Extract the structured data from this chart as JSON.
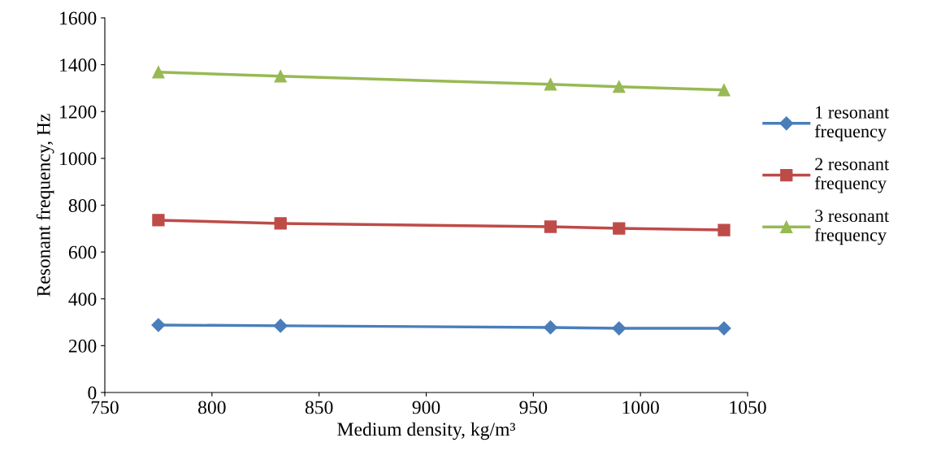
{
  "chart_data": {
    "type": "line",
    "xlabel": "Medium density, kg/m³",
    "ylabel": "Resonant frequency, Hz",
    "xlim": [
      750,
      1050
    ],
    "xticks": [
      750,
      800,
      850,
      900,
      950,
      1000,
      1050
    ],
    "ylim": [
      0,
      1600
    ],
    "yticks": [
      0,
      200,
      400,
      600,
      800,
      1000,
      1200,
      1400,
      1600
    ],
    "grid": false,
    "legend": "right",
    "x": [
      775,
      832,
      958,
      990,
      1039
    ],
    "series": [
      {
        "name": "1 resonant frequency",
        "color": "#4a7ebb",
        "marker": "diamond",
        "values": [
          288,
          285,
          278,
          274,
          274
        ]
      },
      {
        "name": "2 resonant frequency",
        "color": "#be4b48",
        "marker": "square",
        "values": [
          736,
          722,
          708,
          701,
          694
        ]
      },
      {
        "name": "3 resonant frequency",
        "color": "#98b954",
        "marker": "triangle",
        "values": [
          1368,
          1351,
          1316,
          1306,
          1292
        ]
      }
    ]
  }
}
